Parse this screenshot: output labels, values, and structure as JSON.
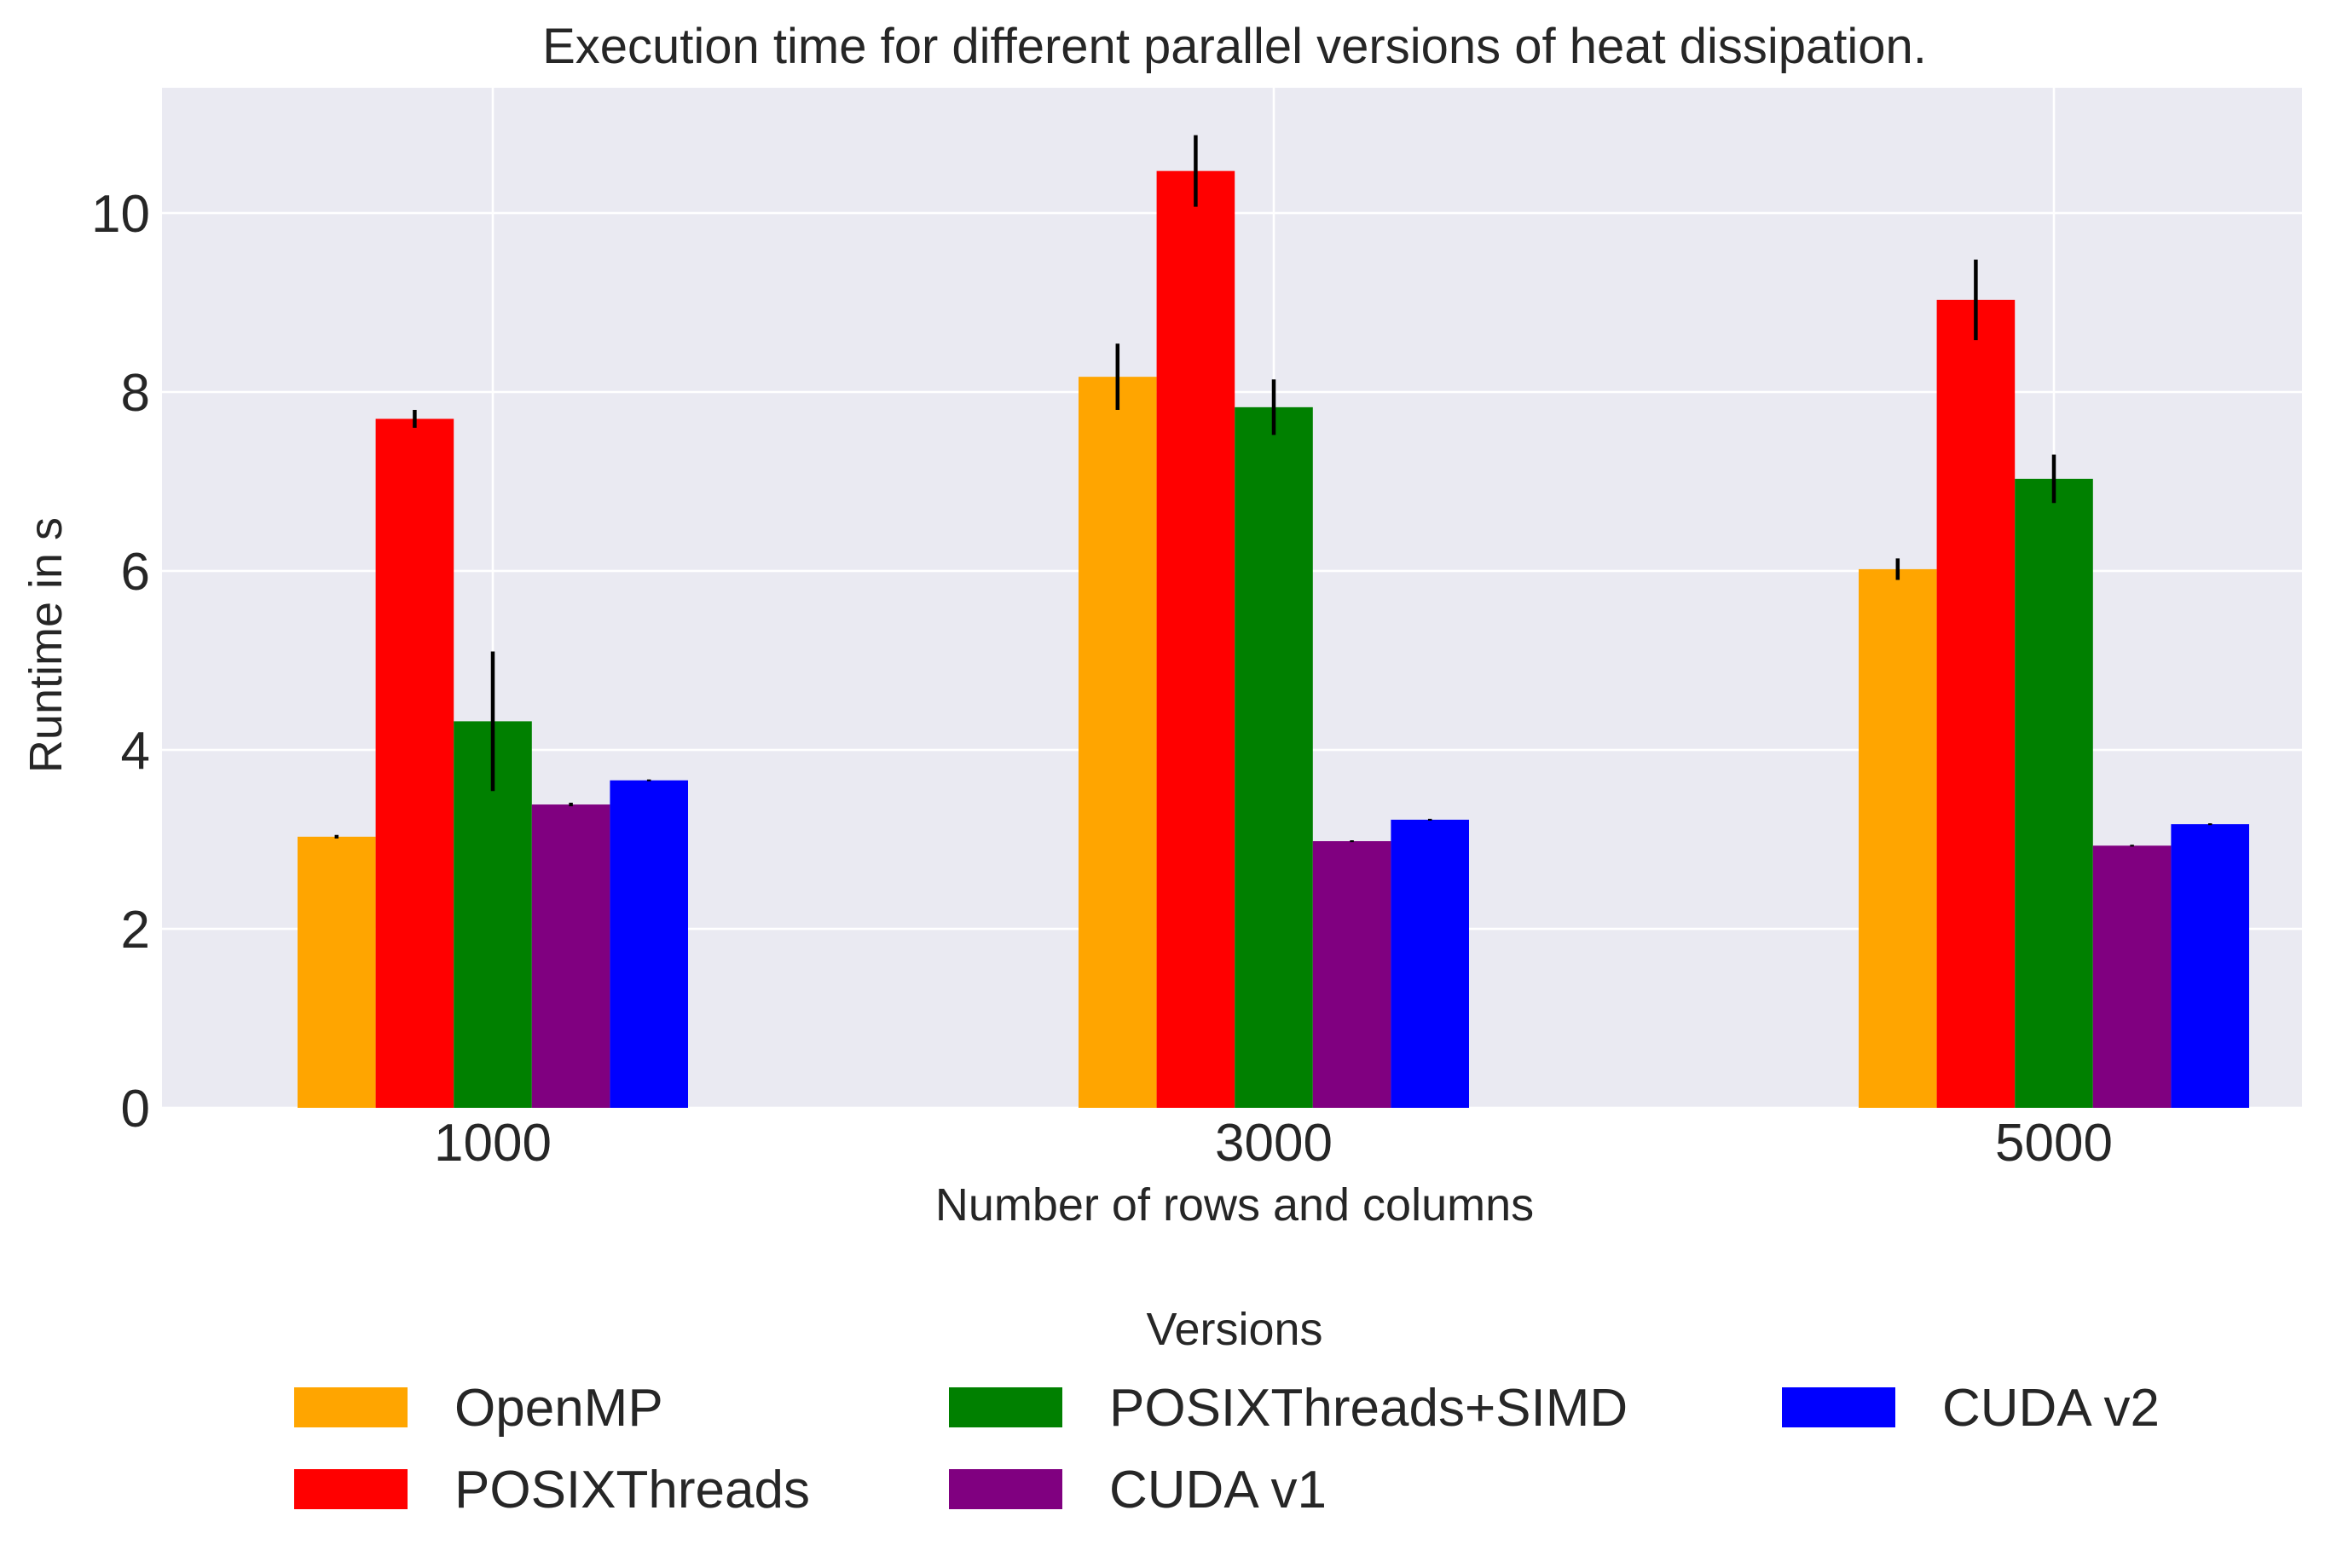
{
  "chart_data": {
    "type": "bar",
    "title": "Execution time for different parallel versions of heat dissipation.",
    "xlabel": "Number of rows and columns",
    "ylabel": "Runtime in s",
    "categories": [
      "1000",
      "3000",
      "5000"
    ],
    "ylim": [
      0,
      11.4
    ],
    "yticks": [
      0,
      2,
      4,
      6,
      8,
      10
    ],
    "grid": true,
    "legend_title": "Versions",
    "legend_position": "bottom-center",
    "series": [
      {
        "name": "OpenMP",
        "color": "#ffa500",
        "values": [
          3.03,
          8.17,
          6.02
        ],
        "errors": [
          0.02,
          0.37,
          0.12
        ]
      },
      {
        "name": "POSIXThreads",
        "color": "#ff0000",
        "values": [
          7.7,
          10.47,
          9.03
        ],
        "errors": [
          0.1,
          0.4,
          0.45
        ]
      },
      {
        "name": "POSIXThreads+SIMD",
        "color": "#008000",
        "values": [
          4.32,
          7.83,
          7.03
        ],
        "errors": [
          0.78,
          0.31,
          0.27
        ]
      },
      {
        "name": "CUDA v1",
        "color": "#800080",
        "values": [
          3.39,
          2.98,
          2.93
        ],
        "errors": [
          0.02,
          0.01,
          0.01
        ]
      },
      {
        "name": "CUDA v2",
        "color": "#0000ff",
        "values": [
          3.66,
          3.22,
          3.17
        ],
        "errors": [
          0.01,
          0.01,
          0.01
        ]
      }
    ]
  }
}
